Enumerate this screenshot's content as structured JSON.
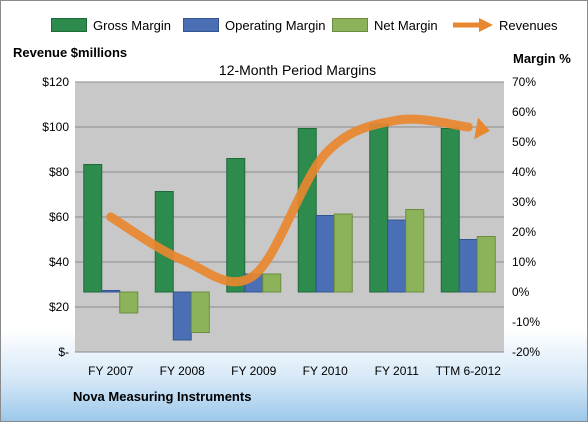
{
  "chart_data": {
    "type": "bar",
    "title": "12-Month Period Margins",
    "categories": [
      "FY 2007",
      "FY 2008",
      "FY 2009",
      "FY 2010",
      "FY 2011",
      "TTM 6-2012"
    ],
    "ylabel_left": "Revenue $millions",
    "ylabel_right": "Margin %",
    "ylim_left": [
      0,
      120
    ],
    "ylim_right": [
      -20,
      70
    ],
    "yticks_left": [
      "$-",
      "$20",
      "$40",
      "$60",
      "$80",
      "$100",
      "$120"
    ],
    "yticks_right": [
      "-20%",
      "-10%",
      "0%",
      "10%",
      "20%",
      "30%",
      "40%",
      "50%",
      "60%",
      "70%"
    ],
    "series": [
      {
        "name": "Gross Margin",
        "type": "bar",
        "axis": "right",
        "color": "#2e8b4e",
        "values": [
          42.5,
          33.5,
          44.5,
          54.5,
          56,
          54.5
        ]
      },
      {
        "name": "Operating Margin",
        "type": "bar",
        "axis": "right",
        "color": "#4a6fb5",
        "values": [
          0.5,
          -16,
          6,
          25.5,
          24,
          17.5
        ]
      },
      {
        "name": "Net Margin",
        "type": "bar",
        "axis": "right",
        "color": "#8db35a",
        "values": [
          -7,
          -13.5,
          6,
          26,
          27.5,
          18.5
        ]
      },
      {
        "name": "Revenues",
        "type": "line",
        "axis": "left",
        "color": "#e8872e",
        "values": [
          60,
          41,
          34,
          88,
          103,
          100
        ]
      }
    ],
    "grid": true,
    "legend": "top"
  },
  "company": "Nova Measuring Instruments"
}
